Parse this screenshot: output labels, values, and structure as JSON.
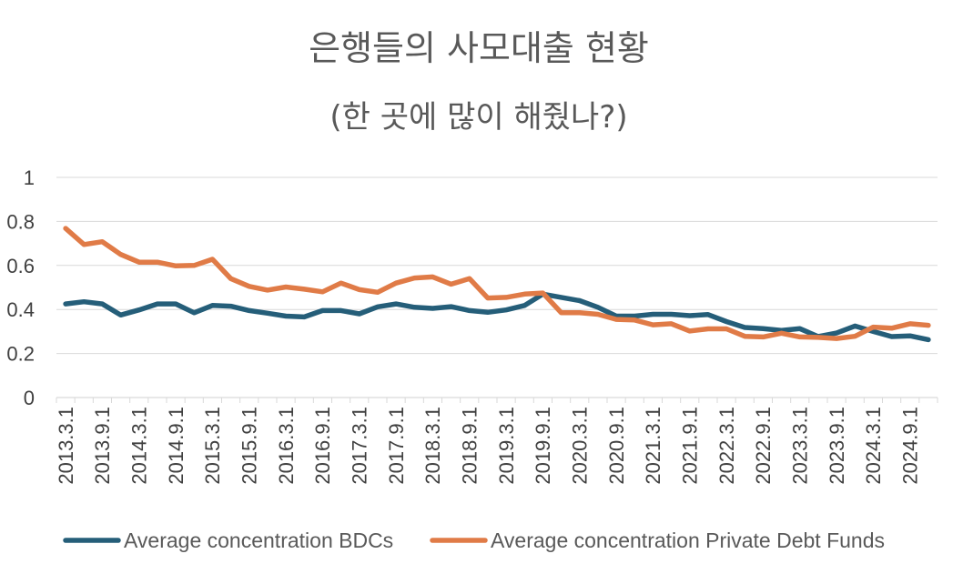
{
  "chart_data": {
    "type": "line",
    "title": "은행들의 사모대출 현황",
    "subtitle": "(한 곳에 많이 해줬나?)",
    "xlabel": "",
    "ylabel": "",
    "ylim": [
      0,
      1
    ],
    "y_ticks": [
      "0",
      "0.2",
      "0.4",
      "0.6",
      "0.8",
      "1"
    ],
    "grid": "horizontal",
    "legend_position": "bottom",
    "x_tick_labels": [
      "2013.3.1",
      "2013.9.1",
      "2014.3.1",
      "2014.9.1",
      "2015.3.1",
      "2015.9.1",
      "2016.3.1",
      "2016.9.1",
      "2017.3.1",
      "2017.9.1",
      "2018.3.1",
      "2018.9.1",
      "2019.3.1",
      "2019.9.1",
      "2020.3.1",
      "2020.9.1",
      "2021.3.1",
      "2021.9.1",
      "2022.3.1",
      "2022.9.1",
      "2023.3.1",
      "2023.9.1",
      "2024.3.1",
      "2024.9.1"
    ],
    "x": [
      "2013.3.1",
      "2013.6.1",
      "2013.9.1",
      "2013.12.1",
      "2014.3.1",
      "2014.6.1",
      "2014.9.1",
      "2014.12.1",
      "2015.3.1",
      "2015.6.1",
      "2015.9.1",
      "2015.12.1",
      "2016.3.1",
      "2016.6.1",
      "2016.9.1",
      "2016.12.1",
      "2017.3.1",
      "2017.6.1",
      "2017.9.1",
      "2017.12.1",
      "2018.3.1",
      "2018.6.1",
      "2018.9.1",
      "2018.12.1",
      "2019.3.1",
      "2019.6.1",
      "2019.9.1",
      "2019.12.1",
      "2020.3.1",
      "2020.6.1",
      "2020.9.1",
      "2020.12.1",
      "2021.3.1",
      "2021.6.1",
      "2021.9.1",
      "2021.12.1",
      "2022.3.1",
      "2022.6.1",
      "2022.9.1",
      "2022.12.1",
      "2023.3.1",
      "2023.6.1",
      "2023.9.1",
      "2023.12.1",
      "2024.3.1",
      "2024.6.1",
      "2024.9.1",
      "2024.12.1"
    ],
    "series": [
      {
        "name": "Average concentration BDCs",
        "color": "#255E79",
        "values": [
          0.425,
          0.435,
          0.425,
          0.375,
          0.398,
          0.425,
          0.425,
          0.385,
          0.418,
          0.415,
          0.395,
          0.383,
          0.37,
          0.366,
          0.395,
          0.395,
          0.38,
          0.412,
          0.425,
          0.41,
          0.405,
          0.413,
          0.395,
          0.387,
          0.398,
          0.418,
          0.47,
          0.455,
          0.44,
          0.41,
          0.37,
          0.37,
          0.378,
          0.378,
          0.372,
          0.377,
          0.345,
          0.318,
          0.313,
          0.305,
          0.313,
          0.277,
          0.293,
          0.325,
          0.3,
          0.277,
          0.28,
          0.263
        ]
      },
      {
        "name": "Average concentration Private Debt Funds",
        "color": "#E07B47",
        "values": [
          0.768,
          0.695,
          0.708,
          0.65,
          0.615,
          0.615,
          0.598,
          0.6,
          0.628,
          0.54,
          0.505,
          0.488,
          0.502,
          0.492,
          0.48,
          0.52,
          0.49,
          0.478,
          0.52,
          0.543,
          0.548,
          0.515,
          0.54,
          0.452,
          0.455,
          0.47,
          0.475,
          0.385,
          0.385,
          0.378,
          0.355,
          0.352,
          0.33,
          0.335,
          0.302,
          0.312,
          0.312,
          0.278,
          0.275,
          0.292,
          0.275,
          0.273,
          0.268,
          0.278,
          0.32,
          0.315,
          0.335,
          0.328
        ]
      }
    ]
  }
}
